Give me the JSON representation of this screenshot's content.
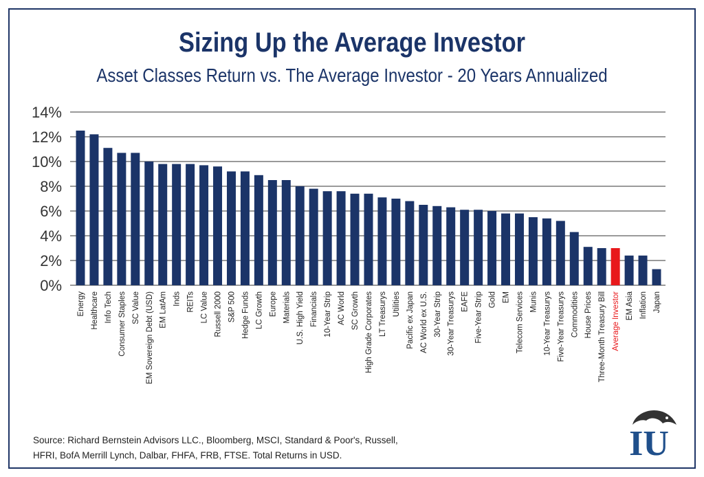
{
  "title": "Sizing Up the Average Investor",
  "subtitle": "Asset Classes Return vs. The Average Investor - 20 Years Annualized",
  "source": {
    "line1": "Source: Richard Bernstein Advisors LLC., Bloomberg, MSCI, Standard & Poor's, Russell,",
    "line2": "HFRI, BofA Merrill Lynch, Dalbar, FHFA, FRB, FTSE. Total Returns in USD."
  },
  "colors": {
    "bar": "#1b3468",
    "highlight": "#e8181b",
    "grid": "#333333",
    "text": "#1b3468"
  },
  "logo": {
    "icon": "bear-logo-icon",
    "text": "IU"
  },
  "chart_data": {
    "type": "bar",
    "title": "Sizing Up the Average Investor",
    "xlabel": "",
    "ylabel": "",
    "ylim": [
      0,
      14
    ],
    "yticks": [
      0,
      2,
      4,
      6,
      8,
      10,
      12,
      14
    ],
    "ytick_labels": [
      "0%",
      "2%",
      "4%",
      "6%",
      "8%",
      "10%",
      "12%",
      "14%"
    ],
    "grid": true,
    "highlight_category": "Average Investor",
    "categories": [
      "Energy",
      "Healthcare",
      "Info Tech",
      "Consumer Staples",
      "SC Value",
      "EM Sovereign Debt (USD)",
      "EM LatAm",
      "Inds",
      "REITs",
      "LC Value",
      "Russell 2000",
      "S&P 500",
      "Hedge Funds",
      "LC Growth",
      "Europe",
      "Materials",
      "U.S. High Yield",
      "Financials",
      "10-Year Strip",
      "AC World",
      "SC Growth",
      "High Grade Corporates",
      "LT Treasurys",
      "Utilities",
      "Pacific ex Japan",
      "AC World ex U.S.",
      "30-Year Strip",
      "30-Year Treasurys",
      "EAFE",
      "Five-Year Strip",
      "Gold",
      "EM",
      "Telecom Services",
      "Munis",
      "10-Year Treasurys",
      "Five-Year Treasurys",
      "Commodities",
      "House Prices",
      "Three-Month Treasury Bill",
      "Average Investor",
      "EM Asia",
      "Inflation",
      "Japan"
    ],
    "values": [
      12.5,
      12.2,
      11.1,
      10.7,
      10.7,
      10.0,
      9.8,
      9.8,
      9.8,
      9.7,
      9.6,
      9.2,
      9.2,
      8.9,
      8.5,
      8.5,
      8.0,
      7.8,
      7.6,
      7.6,
      7.4,
      7.4,
      7.1,
      7.0,
      6.8,
      6.5,
      6.4,
      6.3,
      6.1,
      6.1,
      6.0,
      5.8,
      5.8,
      5.5,
      5.4,
      5.2,
      4.3,
      3.1,
      3.0,
      3.0,
      2.4,
      2.4,
      1.3
    ]
  }
}
